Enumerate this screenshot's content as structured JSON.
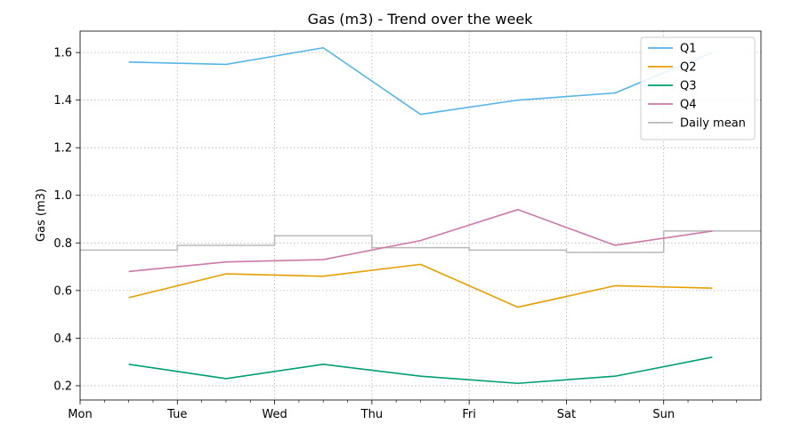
{
  "chart_data": {
    "type": "line",
    "title": "Gas (m3) - Trend over the week",
    "xlabel": "",
    "ylabel": "Gas (m3)",
    "x_ticks": [
      "Mon",
      "Tue",
      "Wed",
      "Thu",
      "Fri",
      "Sat",
      "Sun"
    ],
    "xlim": [
      0,
      7
    ],
    "ylim": [
      0.14,
      1.69
    ],
    "y_ticks": [
      0.2,
      0.4,
      0.6,
      0.8,
      1.0,
      1.2,
      1.4,
      1.6
    ],
    "y_tick_labels": [
      "0.2",
      "0.4",
      "0.6",
      "0.8",
      "1.0",
      "1.2",
      "1.4",
      "1.6"
    ],
    "grid": true,
    "legend_position": "top-right",
    "x": [
      0.5,
      1.5,
      2.5,
      3.5,
      4.5,
      5.5,
      6.5
    ],
    "series": [
      {
        "name": "Q1",
        "color": "#56B4E9",
        "values": [
          1.56,
          1.55,
          1.62,
          1.34,
          1.4,
          1.43,
          1.6
        ]
      },
      {
        "name": "Q2",
        "color": "#E69F00",
        "values": [
          0.57,
          0.67,
          0.66,
          0.71,
          0.53,
          0.62,
          0.61
        ]
      },
      {
        "name": "Q3",
        "color": "#009E73",
        "values": [
          0.29,
          0.23,
          0.29,
          0.24,
          0.21,
          0.24,
          0.32
        ]
      },
      {
        "name": "Q4",
        "color": "#CC79A7",
        "values": [
          0.68,
          0.72,
          0.73,
          0.81,
          0.94,
          0.79,
          0.85
        ]
      }
    ],
    "daily_mean": {
      "name": "Daily mean",
      "color": "#b8b8b8",
      "values": [
        0.77,
        0.79,
        0.83,
        0.78,
        0.77,
        0.76,
        0.85
      ]
    }
  }
}
